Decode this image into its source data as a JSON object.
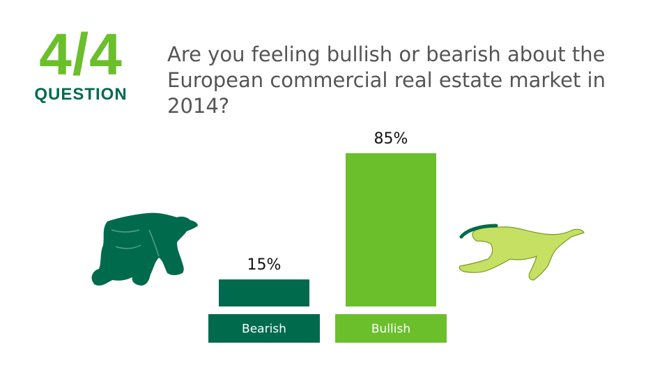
{
  "badge": {
    "number": "4/4",
    "label": "QUESTION"
  },
  "question": "Are you feeling bullish or bearish about the European commercial real estate market in 2014?",
  "colors": {
    "bearish": "#006a4d",
    "bullish": "#6abf2b",
    "bull_figure": "#c5e063",
    "text": "#555555"
  },
  "icons": {
    "left": "bear-icon",
    "right": "bull-icon"
  },
  "chart_data": {
    "type": "bar",
    "categories": [
      "Bearish",
      "Bullish"
    ],
    "values": [
      15,
      85
    ],
    "value_labels": [
      "15%",
      "85%"
    ],
    "ylim": [
      0,
      85
    ],
    "grid": false
  }
}
